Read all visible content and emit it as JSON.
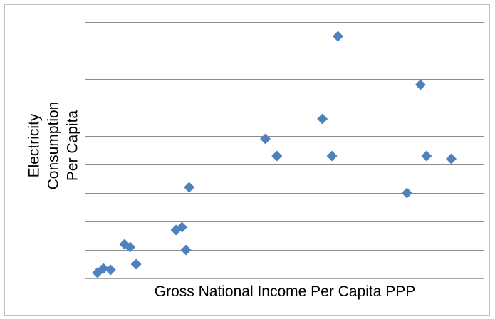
{
  "chart_data": {
    "type": "scatter",
    "title": "",
    "xlabel": "Gross National Income Per Capita PPP",
    "ylabel": "Electricity Consumption Per Capita",
    "xlim": [
      0,
      100
    ],
    "ylim": [
      0,
      9
    ],
    "grid": true,
    "tick_labels_shown": false,
    "marker_color": "#4f81bd",
    "marker_shape": "diamond",
    "series": [
      {
        "points": [
          {
            "x": 3.0,
            "y": 0.2
          },
          {
            "x": 4.5,
            "y": 0.35
          },
          {
            "x": 6.3,
            "y": 0.3
          },
          {
            "x": 9.8,
            "y": 1.2
          },
          {
            "x": 11.2,
            "y": 1.1
          },
          {
            "x": 12.7,
            "y": 0.5
          },
          {
            "x": 22.7,
            "y": 1.7
          },
          {
            "x": 24.2,
            "y": 1.8
          },
          {
            "x": 25.2,
            "y": 1.0
          },
          {
            "x": 26.0,
            "y": 3.2
          },
          {
            "x": 45.1,
            "y": 4.9
          },
          {
            "x": 48.0,
            "y": 4.3
          },
          {
            "x": 59.4,
            "y": 5.6
          },
          {
            "x": 61.8,
            "y": 4.3
          },
          {
            "x": 63.3,
            "y": 8.5
          },
          {
            "x": 80.6,
            "y": 3.0
          },
          {
            "x": 84.0,
            "y": 6.8
          },
          {
            "x": 85.5,
            "y": 4.3
          },
          {
            "x": 91.7,
            "y": 4.2
          }
        ]
      }
    ]
  }
}
